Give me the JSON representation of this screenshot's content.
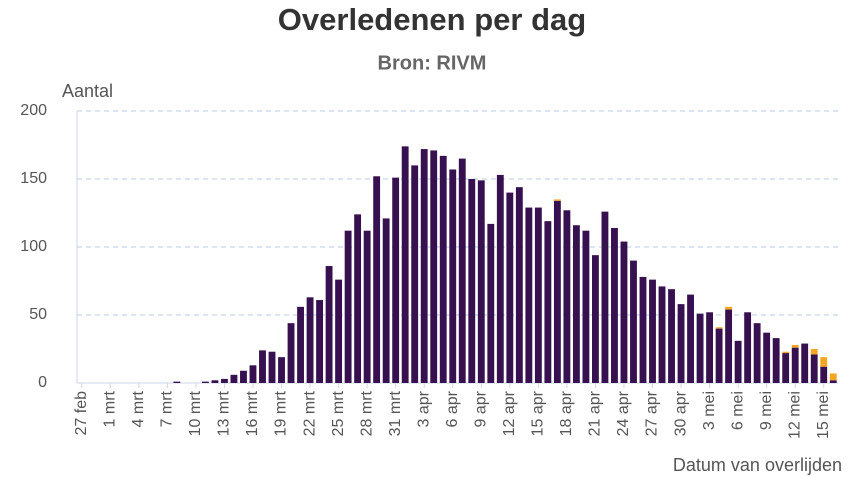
{
  "chart_data": {
    "type": "stacked_bar",
    "title": "Overledenen per dag",
    "subtitle": "Bron: RIVM",
    "y_label": "Aantal",
    "x_label": "Datum van overlijden",
    "categories": [
      "27 feb",
      null,
      null,
      "1 mrt",
      null,
      null,
      "4 mrt",
      null,
      null,
      "7 mrt",
      null,
      null,
      "10 mrt",
      null,
      null,
      "13 mrt",
      null,
      null,
      "16 mrt",
      null,
      null,
      "19 mrt",
      null,
      null,
      "22 mrt",
      null,
      null,
      "25 mrt",
      null,
      null,
      "28 mrt",
      null,
      null,
      "31 mrt",
      null,
      null,
      "3 apr",
      null,
      null,
      "6 apr",
      null,
      null,
      "9 apr",
      null,
      null,
      "12 apr",
      null,
      null,
      "15 apr",
      null,
      null,
      "18 apr",
      null,
      null,
      "21 apr",
      null,
      null,
      "24 apr",
      null,
      null,
      "27 apr",
      null,
      null,
      "30 apr",
      null,
      null,
      "3 mei",
      null,
      null,
      "6 mei",
      null,
      null,
      "9 mei",
      null,
      null,
      "12 mei",
      null,
      null,
      "15 mei",
      null
    ],
    "series": [
      {
        "color": "#36104f",
        "values": [
          0,
          0,
          0,
          0,
          0,
          0,
          0,
          0,
          0,
          0,
          1,
          0,
          0,
          1,
          2,
          3,
          6,
          9,
          13,
          24,
          23,
          19,
          44,
          56,
          63,
          61,
          86,
          76,
          112,
          124,
          112,
          152,
          121,
          151,
          174,
          160,
          172,
          171,
          167,
          157,
          165,
          150,
          149,
          117,
          153,
          140,
          144,
          129,
          129,
          119,
          134,
          127,
          116,
          112,
          94,
          126,
          114,
          104,
          90,
          78,
          76,
          71,
          69,
          58,
          65,
          51,
          52,
          40,
          54,
          31,
          52,
          44,
          37,
          33,
          22,
          26,
          29,
          21,
          12,
          2
        ]
      },
      {
        "color": "#f5a623",
        "values": [
          0,
          0,
          0,
          0,
          0,
          0,
          0,
          0,
          0,
          0,
          0,
          0,
          0,
          0,
          0,
          0,
          0,
          0,
          0,
          0,
          0,
          0,
          0,
          0,
          0,
          0,
          0,
          0,
          0,
          0,
          0,
          0,
          0,
          0,
          0,
          0,
          0,
          0,
          0,
          0,
          0,
          0,
          0,
          0,
          0,
          0,
          0,
          0,
          0,
          0,
          1,
          0,
          0,
          0,
          0,
          0,
          0,
          0,
          0,
          0,
          0,
          0,
          0,
          0,
          0,
          0,
          0,
          1,
          2,
          0,
          0,
          0,
          0,
          0,
          1,
          2,
          0,
          4,
          7,
          5
        ]
      }
    ],
    "ylim": [
      0,
      200
    ],
    "yticks": [
      0,
      50,
      100,
      150,
      200
    ],
    "grid": true
  }
}
